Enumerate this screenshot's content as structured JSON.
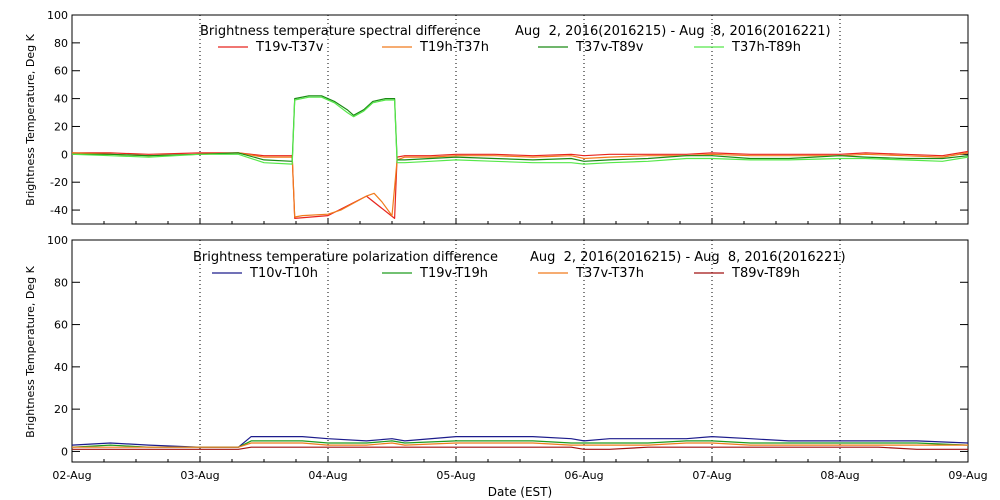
{
  "chart_data": [
    {
      "type": "line",
      "title": "Brightness temperature spectral difference",
      "date_range": "Aug  2, 2016(2016215) - Aug  8, 2016(2016221)",
      "ylabel": "Brightness Temperature, Deg K",
      "ylim": [
        -50,
        100
      ],
      "yticks": [
        -40,
        -20,
        0,
        20,
        40,
        60,
        80,
        100
      ],
      "x_tick_labels": [
        "02-Aug",
        "03-Aug",
        "04-Aug",
        "05-Aug",
        "06-Aug",
        "07-Aug",
        "08-Aug",
        "09-Aug"
      ],
      "xlim_days": [
        0,
        7
      ],
      "grid": "vertical dotted lines at each day",
      "legend_placement": "top",
      "series": [
        {
          "name": "T19v-T37v",
          "color": "#e8251e",
          "x": [
            0,
            0.3,
            0.6,
            1.0,
            1.3,
            1.5,
            1.72,
            1.74,
            2.0,
            2.3,
            2.52,
            2.54,
            2.6,
            2.8,
            3.0,
            3.3,
            3.6,
            3.9,
            4.0,
            4.2,
            4.5,
            4.8,
            5.0,
            5.3,
            5.6,
            6.0,
            6.2,
            6.5,
            6.8,
            7.0
          ],
          "y": [
            1,
            1,
            0,
            1,
            1,
            -1,
            -1,
            -46,
            -44,
            -30,
            -46,
            -2,
            -1,
            -1,
            0,
            0,
            -1,
            0,
            -1,
            0,
            0,
            0,
            1,
            0,
            0,
            0,
            1,
            0,
            -1,
            2
          ]
        },
        {
          "name": "T19h-T37h",
          "color": "#f07b1c",
          "x": [
            0,
            0.3,
            0.6,
            1.0,
            1.3,
            1.5,
            1.72,
            1.74,
            1.8,
            2.0,
            2.1,
            2.2,
            2.3,
            2.36,
            2.42,
            2.5,
            2.54,
            2.6,
            2.8,
            3.0,
            3.3,
            3.6,
            3.9,
            4.0,
            4.2,
            4.5,
            4.8,
            5.0,
            5.3,
            5.6,
            6.0,
            6.2,
            6.5,
            6.8,
            7.0
          ],
          "y": [
            1,
            0,
            -1,
            0,
            1,
            -2,
            -2,
            -45,
            -44,
            -43,
            -40,
            -35,
            -30,
            -28,
            -34,
            -44,
            -4,
            -2,
            -2,
            -1,
            -1,
            -2,
            -1,
            -3,
            -2,
            -1,
            -1,
            0,
            -1,
            -1,
            -1,
            0,
            -1,
            -2,
            1
          ]
        },
        {
          "name": "T37v-T89v",
          "color": "#1a8a14",
          "x": [
            0,
            0.3,
            0.6,
            1.0,
            1.3,
            1.5,
            1.72,
            1.74,
            1.85,
            1.95,
            2.05,
            2.15,
            2.2,
            2.28,
            2.35,
            2.45,
            2.52,
            2.54,
            2.6,
            2.8,
            3.0,
            3.3,
            3.6,
            3.9,
            4.0,
            4.2,
            4.5,
            4.8,
            5.0,
            5.3,
            5.6,
            6.0,
            6.2,
            6.5,
            6.8,
            7.0
          ],
          "y": [
            0,
            0,
            -1,
            0,
            1,
            -4,
            -5,
            40,
            42,
            42,
            38,
            32,
            28,
            32,
            38,
            40,
            40,
            -4,
            -4,
            -3,
            -2,
            -3,
            -4,
            -3,
            -5,
            -4,
            -3,
            -1,
            -1,
            -3,
            -3,
            -1,
            -2,
            -3,
            -3,
            -1
          ]
        },
        {
          "name": "T37h-T89h",
          "color": "#56e84a",
          "x": [
            0,
            0.3,
            0.6,
            1.0,
            1.3,
            1.5,
            1.72,
            1.74,
            1.85,
            1.95,
            2.05,
            2.15,
            2.2,
            2.28,
            2.35,
            2.45,
            2.52,
            2.54,
            2.6,
            2.8,
            3.0,
            3.3,
            3.6,
            3.9,
            4.0,
            4.2,
            4.5,
            4.8,
            5.0,
            5.3,
            5.6,
            6.0,
            6.2,
            6.5,
            6.8,
            7.0
          ],
          "y": [
            0,
            -1,
            -2,
            0,
            0,
            -6,
            -7,
            39,
            41,
            41,
            37,
            30,
            27,
            31,
            37,
            39,
            39,
            -6,
            -6,
            -5,
            -4,
            -5,
            -6,
            -6,
            -7,
            -6,
            -5,
            -3,
            -3,
            -4,
            -4,
            -3,
            -3,
            -4,
            -5,
            -2
          ]
        }
      ]
    },
    {
      "type": "line",
      "title": "Brightness temperature polarization difference",
      "date_range": "Aug  2, 2016(2016215) - Aug  8, 2016(2016221)",
      "xlabel": "Date (EST)",
      "ylabel": "Brightness Temperature, Deg K",
      "ylim": [
        -5,
        100
      ],
      "yticks": [
        0,
        20,
        40,
        60,
        80,
        100
      ],
      "x_tick_labels": [
        "02-Aug",
        "03-Aug",
        "04-Aug",
        "05-Aug",
        "06-Aug",
        "07-Aug",
        "08-Aug",
        "09-Aug"
      ],
      "xlim_days": [
        0,
        7
      ],
      "grid": "vertical dotted lines at each day",
      "legend_placement": "top",
      "series": [
        {
          "name": "T10v-T10h",
          "color": "#1c1c8c",
          "x": [
            0,
            0.3,
            0.6,
            1.0,
            1.3,
            1.4,
            1.8,
            2.0,
            2.3,
            2.5,
            2.6,
            3.0,
            3.3,
            3.6,
            3.9,
            4.0,
            4.2,
            4.5,
            4.8,
            5.0,
            5.3,
            5.6,
            6.0,
            6.3,
            6.6,
            7.0
          ],
          "y": [
            3,
            4,
            3,
            2,
            2,
            7,
            7,
            6,
            5,
            6,
            5,
            7,
            7,
            7,
            6,
            5,
            6,
            6,
            6,
            7,
            6,
            5,
            5,
            5,
            5,
            4
          ]
        },
        {
          "name": "T19v-T19h",
          "color": "#1e9c1e",
          "x": [
            0,
            0.3,
            0.6,
            1.0,
            1.3,
            1.4,
            1.8,
            2.0,
            2.3,
            2.5,
            2.6,
            3.0,
            3.3,
            3.6,
            3.9,
            4.0,
            4.2,
            4.5,
            4.8,
            5.0,
            5.3,
            5.6,
            6.0,
            6.3,
            6.6,
            7.0
          ],
          "y": [
            2,
            3,
            2,
            2,
            2,
            5,
            5,
            4,
            4,
            5,
            4,
            5,
            5,
            5,
            4,
            4,
            4,
            4,
            5,
            5,
            4,
            4,
            4,
            4,
            4,
            3
          ]
        },
        {
          "name": "T37v-T37h",
          "color": "#f07b1c",
          "x": [
            0,
            0.3,
            0.6,
            1.0,
            1.3,
            1.4,
            1.8,
            2.0,
            2.3,
            2.5,
            2.6,
            3.0,
            3.3,
            3.6,
            3.9,
            4.0,
            4.2,
            4.5,
            4.8,
            5.0,
            5.3,
            5.6,
            6.0,
            6.3,
            6.6,
            7.0
          ],
          "y": [
            2,
            2,
            2,
            2,
            2,
            4,
            4,
            3,
            3,
            4,
            3,
            4,
            4,
            4,
            3,
            3,
            3,
            3,
            4,
            4,
            3,
            3,
            3,
            3,
            3,
            3
          ]
        },
        {
          "name": "T89v-T89h",
          "color": "#a01010",
          "x": [
            0,
            0.3,
            0.6,
            1.0,
            1.3,
            1.4,
            1.8,
            2.0,
            2.3,
            2.5,
            2.6,
            3.0,
            3.3,
            3.6,
            3.9,
            4.0,
            4.2,
            4.5,
            4.8,
            5.0,
            5.3,
            5.6,
            6.0,
            6.3,
            6.6,
            7.0
          ],
          "y": [
            1,
            1,
            1,
            1,
            1,
            2,
            2,
            2,
            2,
            2,
            2,
            2,
            2,
            2,
            2,
            1,
            1,
            2,
            2,
            2,
            2,
            2,
            2,
            2,
            1,
            1
          ]
        }
      ]
    }
  ]
}
